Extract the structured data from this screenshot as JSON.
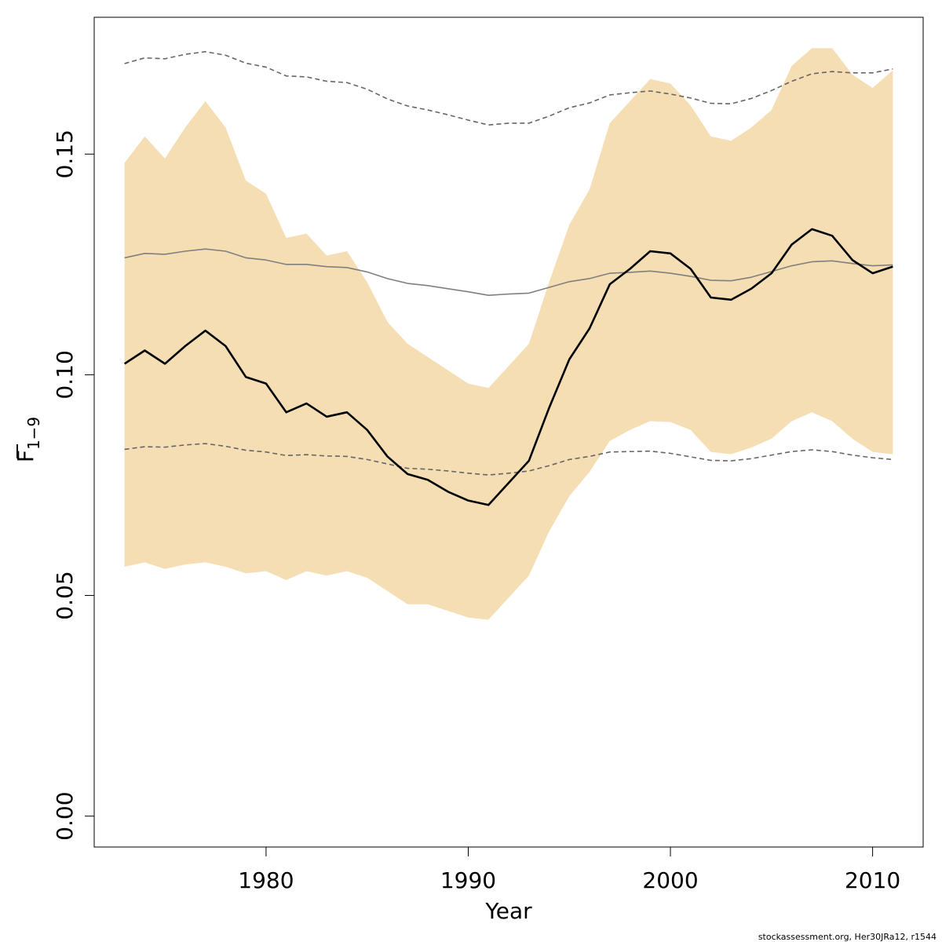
{
  "chart_data": {
    "type": "line",
    "title": "",
    "xlabel": "Year",
    "ylabel_main": "F",
    "ylabel_sub": "1−9",
    "xlim": [
      1971.5,
      2012.5
    ],
    "ylim": [
      -0.007,
      0.181
    ],
    "x_ticks": [
      1980,
      1990,
      2000,
      2010
    ],
    "y_ticks": [
      0.0,
      0.05,
      0.1,
      0.15
    ],
    "y_tick_labels": [
      "0.00",
      "0.05",
      "0.10",
      "0.15"
    ],
    "grid": false,
    "legend": "none",
    "x": [
      1973,
      1974,
      1975,
      1976,
      1977,
      1978,
      1979,
      1980,
      1981,
      1982,
      1983,
      1984,
      1985,
      1986,
      1987,
      1988,
      1989,
      1990,
      1991,
      1992,
      1993,
      1994,
      1995,
      1996,
      1997,
      1998,
      1999,
      2000,
      2001,
      2002,
      2003,
      2004,
      2005,
      2006,
      2007,
      2008,
      2009,
      2010,
      2011
    ],
    "series": [
      {
        "role": "band_upper",
        "color": "#f5deb3",
        "values": [
          0.148,
          0.154,
          0.149,
          0.156,
          0.162,
          0.156,
          0.144,
          0.141,
          0.131,
          0.132,
          0.127,
          0.128,
          0.121,
          0.112,
          0.107,
          0.104,
          0.101,
          0.098,
          0.097,
          0.102,
          0.107,
          0.121,
          0.134,
          0.142,
          0.157,
          0.162,
          0.167,
          0.166,
          0.161,
          0.154,
          0.153,
          0.156,
          0.16,
          0.17,
          0.174,
          0.174,
          0.168,
          0.165,
          0.169
        ]
      },
      {
        "role": "band_lower",
        "color": "#f5deb3",
        "values": [
          0.0565,
          0.0575,
          0.056,
          0.057,
          0.0575,
          0.0565,
          0.055,
          0.0555,
          0.0535,
          0.0555,
          0.0545,
          0.0555,
          0.054,
          0.051,
          0.048,
          0.048,
          0.0465,
          0.045,
          0.0445,
          0.0495,
          0.0545,
          0.0645,
          0.0725,
          0.078,
          0.085,
          0.0875,
          0.0895,
          0.0893,
          0.0875,
          0.0825,
          0.082,
          0.0835,
          0.0855,
          0.0895,
          0.0915,
          0.0895,
          0.0855,
          0.0825,
          0.082
        ]
      },
      {
        "role": "estimate",
        "color": "#000000",
        "width": 2.6,
        "values": [
          0.1025,
          0.1055,
          0.1025,
          0.1065,
          0.11,
          0.1065,
          0.0995,
          0.098,
          0.0915,
          0.0935,
          0.0905,
          0.0915,
          0.0875,
          0.0815,
          0.0775,
          0.0762,
          0.0735,
          0.0715,
          0.0705,
          0.0755,
          0.0805,
          0.0925,
          0.1035,
          0.1105,
          0.1205,
          0.124,
          0.128,
          0.1275,
          0.124,
          0.1175,
          0.117,
          0.1195,
          0.123,
          0.1295,
          0.133,
          0.1315,
          0.126,
          0.123,
          0.1245
        ]
      },
      {
        "role": "reference_mean",
        "color": "#808080",
        "width": 1.6,
        "values": [
          0.1265,
          0.1275,
          0.1273,
          0.128,
          0.1285,
          0.128,
          0.1265,
          0.126,
          0.125,
          0.125,
          0.1245,
          0.1243,
          0.1233,
          0.1218,
          0.1207,
          0.1202,
          0.1195,
          0.1188,
          0.118,
          0.1183,
          0.1185,
          0.1198,
          0.1211,
          0.1218,
          0.123,
          0.1232,
          0.1235,
          0.123,
          0.1223,
          0.1214,
          0.1213,
          0.1221,
          0.1234,
          0.1247,
          0.1256,
          0.1258,
          0.1252,
          0.1247,
          0.1249
        ]
      },
      {
        "role": "reference_upper",
        "color": "#666666",
        "width": 1.6,
        "dashed": true,
        "values": [
          0.1705,
          0.1718,
          0.1716,
          0.1726,
          0.1732,
          0.1724,
          0.1706,
          0.1697,
          0.1677,
          0.1675,
          0.1665,
          0.1662,
          0.1647,
          0.1625,
          0.1609,
          0.16,
          0.1589,
          0.1577,
          0.1566,
          0.157,
          0.157,
          0.1586,
          0.1605,
          0.1616,
          0.1634,
          0.1639,
          0.1643,
          0.1636,
          0.1627,
          0.1615,
          0.1614,
          0.1626,
          0.1644,
          0.1665,
          0.1682,
          0.1687,
          0.1684,
          0.1684,
          0.1693
        ]
      },
      {
        "role": "reference_lower",
        "color": "#666666",
        "width": 1.6,
        "dashed": true,
        "values": [
          0.0831,
          0.0837,
          0.0836,
          0.0841,
          0.0844,
          0.0838,
          0.0829,
          0.0825,
          0.0817,
          0.0819,
          0.0816,
          0.0815,
          0.0808,
          0.0798,
          0.0788,
          0.0786,
          0.0782,
          0.0777,
          0.0773,
          0.0777,
          0.0782,
          0.0794,
          0.0808,
          0.0815,
          0.0825,
          0.0826,
          0.0827,
          0.0822,
          0.0814,
          0.0806,
          0.0805,
          0.081,
          0.0818,
          0.0826,
          0.083,
          0.0826,
          0.0818,
          0.0812,
          0.0808
        ]
      }
    ]
  },
  "footer": {
    "text": "stockassessment.org, Her30JRa12, r1544"
  }
}
